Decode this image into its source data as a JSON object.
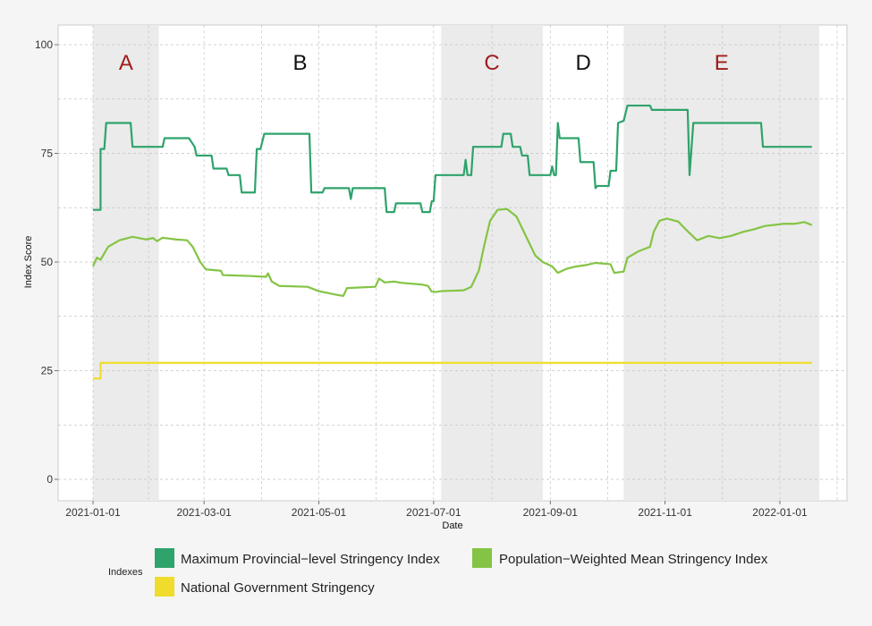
{
  "chart_data": {
    "type": "line",
    "xlabel": "Date",
    "ylabel": "Index Score",
    "ylim": [
      0,
      100
    ],
    "y_ticks": [
      "0",
      "25",
      "50",
      "75",
      "100"
    ],
    "x_ticks": [
      "2021-01-01",
      "2021-03-01",
      "2021-05-01",
      "2021-07-01",
      "2021-09-01",
      "2021-11-01",
      "2022-01-01"
    ],
    "grid": true,
    "legend_title": "Indexes",
    "legend_position": "bottom",
    "periods": [
      {
        "label": "A",
        "start": "2021-01-01",
        "end": "2021-02-05",
        "shaded": true,
        "color": "#a01c1c"
      },
      {
        "label": "B",
        "start": "2021-02-05",
        "end": "2021-07-05",
        "shaded": false,
        "color": "#111111"
      },
      {
        "label": "C",
        "start": "2021-07-05",
        "end": "2021-08-28",
        "shaded": true,
        "color": "#a01c1c"
      },
      {
        "label": "D",
        "start": "2021-08-28",
        "end": "2021-10-10",
        "shaded": false,
        "color": "#111111"
      },
      {
        "label": "E",
        "start": "2021-10-10",
        "end": "2022-01-22",
        "shaded": true,
        "color": "#a01c1c"
      }
    ],
    "series": [
      {
        "name": "Maximum Provincial−level Stringency Index",
        "color": "#2ea36b",
        "points": [
          [
            "2021-01-01",
            62
          ],
          [
            "2021-01-05",
            62
          ],
          [
            "2021-01-05",
            76
          ],
          [
            "2021-01-07",
            76
          ],
          [
            "2021-01-08",
            82
          ],
          [
            "2021-01-21",
            82
          ],
          [
            "2021-01-22",
            76.5
          ],
          [
            "2021-02-07",
            76.5
          ],
          [
            "2021-02-08",
            78.5
          ],
          [
            "2021-02-21",
            78.5
          ],
          [
            "2021-02-24",
            76.5
          ],
          [
            "2021-02-25",
            74.5
          ],
          [
            "2021-03-05",
            74.5
          ],
          [
            "2021-03-06",
            71.5
          ],
          [
            "2021-03-13",
            71.5
          ],
          [
            "2021-03-14",
            70
          ],
          [
            "2021-03-20",
            70
          ],
          [
            "2021-03-21",
            66
          ],
          [
            "2021-03-28",
            66
          ],
          [
            "2021-03-29",
            76
          ],
          [
            "2021-03-31",
            76
          ],
          [
            "2021-04-02",
            79.5
          ],
          [
            "2021-04-26",
            79.5
          ],
          [
            "2021-04-27",
            66
          ],
          [
            "2021-05-03",
            66
          ],
          [
            "2021-05-04",
            67
          ],
          [
            "2021-05-17",
            67
          ],
          [
            "2021-05-18",
            64.5
          ],
          [
            "2021-05-19",
            67
          ],
          [
            "2021-06-05",
            67
          ],
          [
            "2021-06-06",
            61.5
          ],
          [
            "2021-06-10",
            61.5
          ],
          [
            "2021-06-11",
            63.5
          ],
          [
            "2021-06-24",
            63.5
          ],
          [
            "2021-06-25",
            61.5
          ],
          [
            "2021-06-29",
            61.5
          ],
          [
            "2021-06-30",
            64
          ],
          [
            "2021-07-01",
            64
          ],
          [
            "2021-07-02",
            70
          ],
          [
            "2021-07-17",
            70
          ],
          [
            "2021-07-18",
            73.5
          ],
          [
            "2021-07-19",
            70
          ],
          [
            "2021-07-21",
            70
          ],
          [
            "2021-07-22",
            76.5
          ],
          [
            "2021-08-06",
            76.5
          ],
          [
            "2021-08-07",
            79.5
          ],
          [
            "2021-08-11",
            79.5
          ],
          [
            "2021-08-12",
            76.5
          ],
          [
            "2021-08-16",
            76.5
          ],
          [
            "2021-08-17",
            74.5
          ],
          [
            "2021-08-20",
            74.5
          ],
          [
            "2021-08-21",
            70
          ],
          [
            "2021-09-01",
            70
          ],
          [
            "2021-09-02",
            72
          ],
          [
            "2021-09-03",
            70
          ],
          [
            "2021-09-04",
            70
          ],
          [
            "2021-09-05",
            82
          ],
          [
            "2021-09-06",
            78.5
          ],
          [
            "2021-09-16",
            78.5
          ],
          [
            "2021-09-17",
            73
          ],
          [
            "2021-09-24",
            73
          ],
          [
            "2021-09-25",
            67
          ],
          [
            "2021-09-26",
            67.5
          ],
          [
            "2021-10-02",
            67.5
          ],
          [
            "2021-10-03",
            71
          ],
          [
            "2021-10-06",
            71
          ],
          [
            "2021-10-07",
            82
          ],
          [
            "2021-10-10",
            82.5
          ],
          [
            "2021-10-12",
            86
          ],
          [
            "2021-10-24",
            86
          ],
          [
            "2021-10-25",
            85
          ],
          [
            "2021-11-13",
            85
          ],
          [
            "2021-11-14",
            70
          ],
          [
            "2021-11-16",
            82
          ],
          [
            "2021-12-22",
            82
          ],
          [
            "2021-12-23",
            76.5
          ],
          [
            "2022-01-18",
            76.5
          ]
        ]
      },
      {
        "name": "Population−Weighted Mean Stringency Index",
        "color": "#84c444",
        "points": [
          [
            "2021-01-01",
            49
          ],
          [
            "2021-01-03",
            51
          ],
          [
            "2021-01-05",
            50.5
          ],
          [
            "2021-01-09",
            53.5
          ],
          [
            "2021-01-15",
            55
          ],
          [
            "2021-01-22",
            55.8
          ],
          [
            "2021-01-29",
            55.2
          ],
          [
            "2021-02-02",
            55.5
          ],
          [
            "2021-02-04",
            54.8
          ],
          [
            "2021-02-07",
            55.6
          ],
          [
            "2021-02-14",
            55.2
          ],
          [
            "2021-02-20",
            55
          ],
          [
            "2021-02-23",
            53.5
          ],
          [
            "2021-02-27",
            50
          ],
          [
            "2021-03-02",
            48.3
          ],
          [
            "2021-03-10",
            48
          ],
          [
            "2021-03-11",
            47
          ],
          [
            "2021-03-25",
            46.8
          ],
          [
            "2021-04-03",
            46.6
          ],
          [
            "2021-04-04",
            47.4
          ],
          [
            "2021-04-06",
            45.5
          ],
          [
            "2021-04-10",
            44.5
          ],
          [
            "2021-04-25",
            44.3
          ],
          [
            "2021-05-01",
            43.3
          ],
          [
            "2021-05-10",
            42.5
          ],
          [
            "2021-05-14",
            42.2
          ],
          [
            "2021-05-16",
            44
          ],
          [
            "2021-05-31",
            44.3
          ],
          [
            "2021-06-02",
            46.2
          ],
          [
            "2021-06-05",
            45.3
          ],
          [
            "2021-06-10",
            45.5
          ],
          [
            "2021-06-14",
            45.2
          ],
          [
            "2021-06-25",
            44.8
          ],
          [
            "2021-06-28",
            44.5
          ],
          [
            "2021-06-30",
            43.2
          ],
          [
            "2021-07-02",
            43.1
          ],
          [
            "2021-07-05",
            43.3
          ],
          [
            "2021-07-17",
            43.5
          ],
          [
            "2021-07-21",
            44.3
          ],
          [
            "2021-07-25",
            48
          ],
          [
            "2021-07-28",
            54
          ],
          [
            "2021-07-31",
            59.5
          ],
          [
            "2021-08-04",
            62
          ],
          [
            "2021-08-09",
            62.2
          ],
          [
            "2021-08-14",
            60.5
          ],
          [
            "2021-08-19",
            56
          ],
          [
            "2021-08-24",
            51.5
          ],
          [
            "2021-08-28",
            50
          ],
          [
            "2021-09-02",
            49
          ],
          [
            "2021-09-05",
            47.5
          ],
          [
            "2021-09-10",
            48.5
          ],
          [
            "2021-09-15",
            49
          ],
          [
            "2021-09-20",
            49.3
          ],
          [
            "2021-09-25",
            49.8
          ],
          [
            "2021-10-03",
            49.5
          ],
          [
            "2021-10-05",
            47.5
          ],
          [
            "2021-10-10",
            47.8
          ],
          [
            "2021-10-12",
            51
          ],
          [
            "2021-10-18",
            52.5
          ],
          [
            "2021-10-24",
            53.5
          ],
          [
            "2021-10-26",
            57
          ],
          [
            "2021-10-29",
            59.5
          ],
          [
            "2021-11-02",
            60
          ],
          [
            "2021-11-08",
            59.3
          ],
          [
            "2021-11-12",
            57.5
          ],
          [
            "2021-11-18",
            55
          ],
          [
            "2021-11-24",
            56
          ],
          [
            "2021-11-30",
            55.5
          ],
          [
            "2021-12-06",
            56
          ],
          [
            "2021-12-13",
            57
          ],
          [
            "2021-12-18",
            57.5
          ],
          [
            "2021-12-24",
            58.3
          ],
          [
            "2022-01-03",
            58.8
          ],
          [
            "2022-01-09",
            58.8
          ],
          [
            "2022-01-14",
            59.2
          ],
          [
            "2022-01-18",
            58.5
          ]
        ]
      },
      {
        "name": "National Government Stringency",
        "color": "#f0dc2c",
        "points": [
          [
            "2021-01-01",
            23.2
          ],
          [
            "2021-01-05",
            23.2
          ],
          [
            "2021-01-05",
            26.8
          ],
          [
            "2022-01-18",
            26.8
          ]
        ]
      }
    ]
  }
}
